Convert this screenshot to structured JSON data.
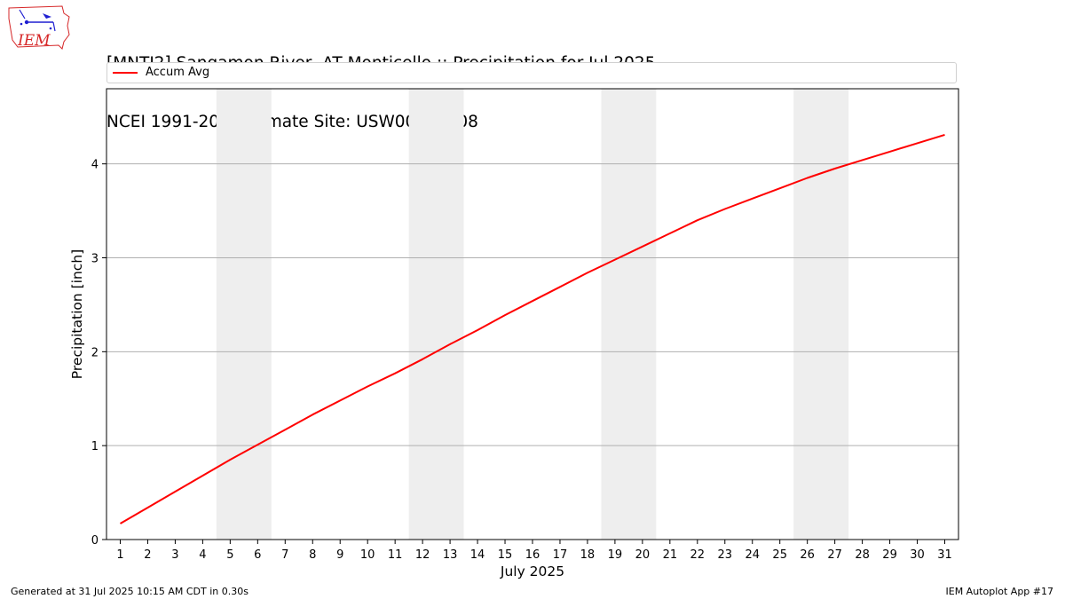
{
  "logo": {
    "text": "IEM"
  },
  "title": {
    "line1": "[MNTI2] Sangamon River  AT Monticello :: Precipitation for Jul 2025",
    "line2": "NCEI 1991-2020 Climate Site: USW00054808"
  },
  "footer": {
    "left": "Generated at 31 Jul 2025 10:15 AM CDT in 0.30s",
    "right": "IEM Autoplot App #17"
  },
  "colors": {
    "series": "#ff0000",
    "weekend_band": "#eeeeee",
    "grid": "#b0b0b0",
    "logo_outline": "#d62728",
    "logo_text": "#d62728",
    "logo_symbols": "#1f1fd1"
  },
  "chart_data": {
    "type": "line",
    "xlabel": "July 2025",
    "ylabel": "Precipitation [inch]",
    "xlim": [
      0.5,
      31.5
    ],
    "ylim": [
      0,
      4.8
    ],
    "yticks": [
      0,
      1,
      2,
      3,
      4
    ],
    "xticks": [
      1,
      2,
      3,
      4,
      5,
      6,
      7,
      8,
      9,
      10,
      11,
      12,
      13,
      14,
      15,
      16,
      17,
      18,
      19,
      20,
      21,
      22,
      23,
      24,
      25,
      26,
      27,
      28,
      29,
      30,
      31
    ],
    "grid": "horizontal",
    "legend": "top",
    "weekend_bands": [
      [
        4.5,
        6.5
      ],
      [
        11.5,
        13.5
      ],
      [
        18.5,
        20.5
      ],
      [
        25.5,
        27.5
      ]
    ],
    "series": [
      {
        "name": "Accum Avg",
        "x": [
          1,
          2,
          3,
          4,
          5,
          6,
          7,
          8,
          9,
          10,
          11,
          12,
          13,
          14,
          15,
          16,
          17,
          18,
          19,
          20,
          21,
          22,
          23,
          24,
          25,
          26,
          27,
          28,
          29,
          30,
          31
        ],
        "values": [
          0.17,
          0.34,
          0.51,
          0.68,
          0.85,
          1.01,
          1.17,
          1.33,
          1.48,
          1.63,
          1.77,
          1.92,
          2.08,
          2.23,
          2.39,
          2.54,
          2.69,
          2.84,
          2.98,
          3.12,
          3.26,
          3.4,
          3.52,
          3.63,
          3.74,
          3.85,
          3.95,
          4.04,
          4.13,
          4.22,
          4.31
        ]
      }
    ]
  }
}
